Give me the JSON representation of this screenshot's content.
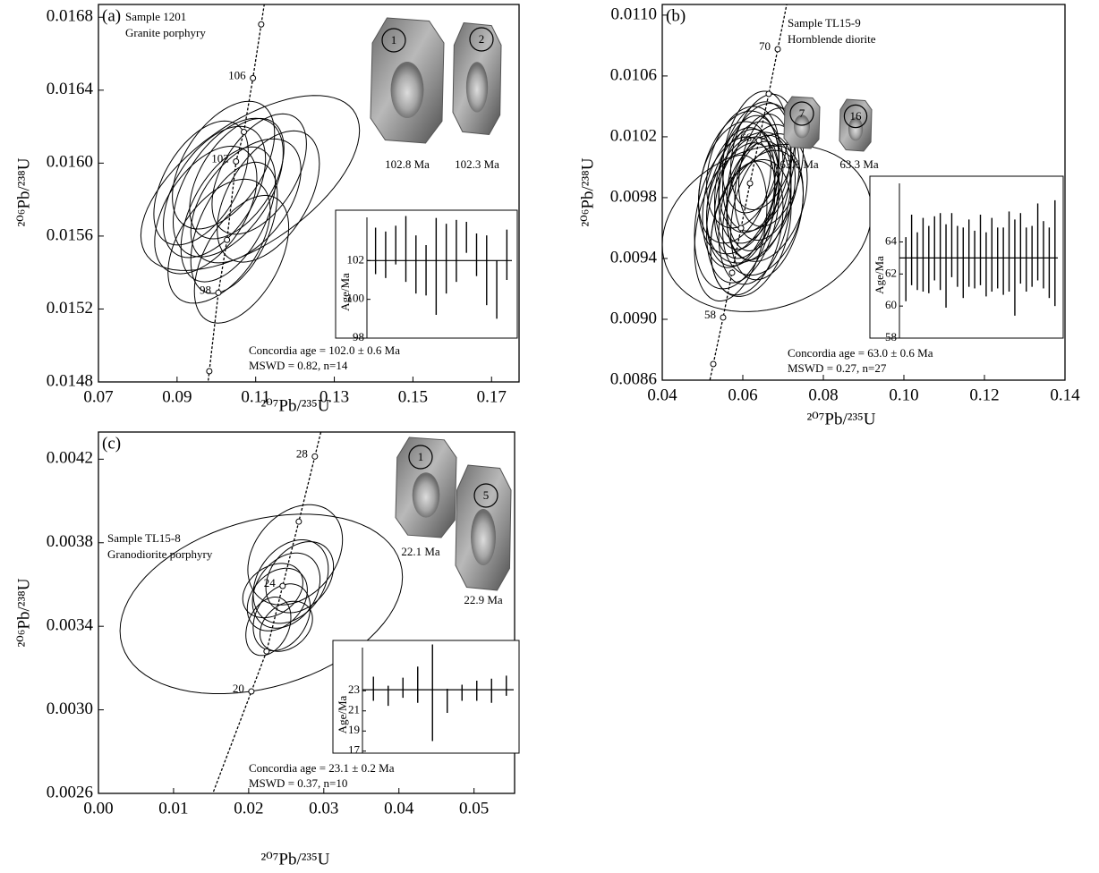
{
  "chart_data": [
    {
      "type": "concordia",
      "panel": "(a)",
      "sample": "Sample 1201",
      "rock": "Granite porphyry",
      "xlabel": "²⁰⁷Pb/²³⁵U",
      "ylabel": "²⁰⁶Pb/²³⁸U",
      "xlim": [
        0.07,
        0.177
      ],
      "ylim": [
        0.0148,
        0.01687
      ],
      "xticks": [
        0.07,
        0.09,
        0.11,
        0.13,
        0.15,
        0.17
      ],
      "yticks": [
        0.0148,
        0.0152,
        0.0156,
        {
          "value": 0.016,
          "label": "0.0160"
        },
        0.0164,
        0.0168
      ],
      "concordia": {
        "x": [
          0.0982,
          0.1005,
          0.1027,
          0.105,
          0.107,
          0.1093,
          0.1114
        ],
        "y": [
          0.014859,
          0.015289,
          0.015579,
          0.016009,
          0.016171,
          0.016466,
          0.016761
        ],
        "labels": [
          null,
          98,
          null,
          102,
          null,
          106,
          null
        ]
      },
      "ellipses": {
        "x": [
          0.1018,
          0.1052,
          0.0995,
          0.1075,
          0.103,
          0.0973,
          0.1109,
          0.1045,
          0.1007,
          0.1064,
          0.1132,
          0.0961,
          0.103,
          0.1086
        ],
        "y": [
          0.015989,
          0.015915,
          0.015842,
          0.015793,
          0.015719,
          0.015743,
          0.01594,
          0.015645,
          0.015572,
          0.015473,
          0.015817,
          0.015891,
          0.015866,
          0.015891
        ],
        "x_err": [
          0.013,
          0.012,
          0.013,
          0.014,
          0.012,
          0.013,
          0.012,
          0.011,
          0.013,
          0.012,
          0.013,
          0.012,
          0.014,
          0.0278
        ],
        "y_err": [
          0.00035,
          0.00033,
          0.00036,
          0.00034,
          0.00037,
          0.00035,
          0.00033,
          0.00036,
          0.00034,
          0.00035,
          0.00036,
          0.00034,
          0.00038,
          0.00048
        ],
        "rho": [
          0.5,
          0.5,
          0.5,
          0.5,
          0.5,
          0.5,
          0.5,
          0.5,
          0.5,
          0.5,
          0.5,
          0.5,
          0.5,
          0.6
        ]
      },
      "grains": [
        {
          "label": "1",
          "age": "102.8 Ma"
        },
        {
          "label": "2",
          "age": "102.3 Ma"
        }
      ],
      "concordia_age": "Concordia age = 102.0 ± 0.6 Ma",
      "mswd": "MSWD = 0.82, n=14",
      "inset": {
        "ylabel": "Age/Ma",
        "ylim": [
          98,
          104.6
        ],
        "yticks": [
          98,
          100,
          102
        ],
        "mean": 102.0,
        "values": [
          102.5,
          102.3,
          102.8,
          102.6,
          101.8,
          101.5,
          101.7,
          102.1,
          102.5,
          103.2,
          102.3,
          101.5,
          100.5,
          102.3
        ],
        "errors": [
          1.2,
          1.2,
          1.0,
          1.7,
          1.5,
          1.3,
          2.5,
          1.8,
          1.6,
          0.8,
          1.1,
          1.8,
          1.5,
          1.3
        ]
      }
    },
    {
      "type": "concordia",
      "panel": "(b)",
      "sample": "Sample TL15-9",
      "rock": "Hornblende diorite",
      "xlabel": "²⁰⁷Pb/²³⁵U",
      "ylabel": "²⁰⁶Pb/²³⁸U",
      "xlim": [
        0.04,
        0.14
      ],
      "ylim": [
        0.0086,
        0.01107
      ],
      "xticks": [
        0.04,
        0.06,
        0.08,
        {
          "value": 0.1,
          "label": "0.10"
        },
        0.12,
        0.14
      ],
      "yticks": [
        0.0086,
        {
          "value": 0.009,
          "label": "0.0090"
        },
        0.0094,
        0.0098,
        0.0102,
        0.0106,
        {
          "value": 0.011,
          "label": "0.0110"
        }
      ],
      "concordia": {
        "x": [
          0.05267,
          0.05511,
          0.05733,
          0.05956,
          0.06178,
          0.064,
          0.06644,
          0.06867
        ],
        "y": [
          0.008706,
          0.009012,
          0.009306,
          0.0096,
          0.009894,
          0.010176,
          0.010482,
          0.010776
        ],
        "labels": [
          null,
          58,
          null,
          null,
          null,
          66,
          null,
          70
        ]
      },
      "ellipses": {
        "x": [
          0.06,
          0.062,
          0.064,
          0.058,
          0.066,
          0.061,
          0.063,
          0.059,
          0.065,
          0.067,
          0.057,
          0.062,
          0.064,
          0.06,
          0.066,
          0.063,
          0.061,
          0.058,
          0.065,
          0.062,
          0.06,
          0.064,
          0.063,
          0.059,
          0.061,
          0.066,
          0.066
        ],
        "y": [
          0.0098,
          0.0099,
          0.01,
          0.0097,
          0.0099,
          0.0096,
          0.0101,
          0.0098,
          0.0097,
          0.01,
          0.0096,
          0.0098,
          0.0099,
          0.01,
          0.0098,
          0.0097,
          0.0099,
          0.0099,
          0.0101,
          0.0096,
          0.0097,
          0.0098,
          0.01,
          0.0099,
          0.0098,
          0.0097,
          0.0096
        ],
        "x_err": [
          0.009,
          0.008,
          0.009,
          0.01,
          0.008,
          0.009,
          0.008,
          0.009,
          0.01,
          0.008,
          0.009,
          0.011,
          0.008,
          0.009,
          0.01,
          0.009,
          0.008,
          0.009,
          0.008,
          0.01,
          0.009,
          0.008,
          0.009,
          0.01,
          0.008,
          0.009,
          0.026
        ],
        "y_err": [
          0.00045,
          0.0004,
          0.00042,
          0.0005,
          0.00038,
          0.00044,
          0.0004,
          0.00046,
          0.00041,
          0.00039,
          0.00048,
          0.00043,
          0.00045,
          0.0004,
          0.00042,
          0.00047,
          0.00044,
          0.0004,
          0.00038,
          0.00045,
          0.00046,
          0.00041,
          0.00043,
          0.00047,
          0.0004,
          0.00044,
          0.00055
        ],
        "rho": [
          0.3,
          0.3,
          0.3,
          0.3,
          0.3,
          0.3,
          0.3,
          0.3,
          0.3,
          0.3,
          0.3,
          0.3,
          0.3,
          0.3,
          0.3,
          0.3,
          0.3,
          0.3,
          0.3,
          0.3,
          0.3,
          0.3,
          0.3,
          0.3,
          0.3,
          0.3,
          0.2
        ]
      },
      "grains": [
        {
          "label": "7",
          "age": "63.6 Ma"
        },
        {
          "label": "16",
          "age": "63.3 Ma"
        }
      ],
      "concordia_age": "Concordia age = 63.0 ± 0.6 Ma",
      "mswd": "MSWD = 0.27, n=27",
      "inset": {
        "ylabel": "Age/Ma",
        "ylim": [
          58,
          68.1
        ],
        "yticks": [
          58,
          60,
          62,
          64
        ],
        "mean": 63.0,
        "values": [
          62.3,
          63.5,
          62.8,
          63.2,
          62.9,
          63.6,
          63.4,
          62.5,
          63.8,
          63.1,
          62.7,
          63.3,
          62.9,
          63.5,
          62.6,
          63.2,
          63.0,
          62.8,
          63.4,
          62.4,
          63.6,
          62.9,
          63.1,
          64.0,
          63.2,
          62.7,
          63.3
        ],
        "errors": [
          2.0,
          2.2,
          1.8,
          2.3,
          2.1,
          2.0,
          2.4,
          2.6,
          2.0,
          1.9,
          2.2,
          2.1,
          1.8,
          2.2,
          2.0,
          2.3,
          1.9,
          2.1,
          2.5,
          3.0,
          2.2,
          2.0,
          1.9,
          2.4,
          2.1,
          2.2,
          3.3
        ]
      }
    },
    {
      "type": "concordia",
      "panel": "(c)",
      "sample": "Sample TL15-8",
      "rock": "Granodiorite porphyry",
      "xlabel": "²⁰⁷Pb/²³⁵U",
      "ylabel": "²⁰⁶Pb/²³⁸U",
      "xlim": [
        0,
        0.0554
      ],
      "ylim": [
        0.0026,
        0.00433
      ],
      "xticks": [
        {
          "value": 0,
          "label": "0.00"
        },
        0.01,
        0.02,
        0.03,
        0.04,
        0.05
      ],
      "yticks": [
        0.0026,
        {
          "value": 0.003,
          "label": "0.0030"
        },
        0.0034,
        0.0038,
        0.0042
      ],
      "concordia": {
        "x": [
          0.02036,
          0.02238,
          0.02452,
          0.02667,
          0.02881
        ],
        "y": [
          0.003088,
          0.00328,
          0.003593,
          0.003901,
          0.004213
        ],
        "labels": [
          20,
          null,
          24,
          null,
          28
        ]
      },
      "ellipses": {
        "x": [
          0.02619,
          0.025,
          0.02381,
          0.0256,
          0.0244,
          0.02262,
          0.02679,
          0.02321,
          0.025,
          0.02167
        ],
        "y": [
          0.003742,
          0.003571,
          0.003528,
          0.003614,
          0.003443,
          0.0034,
          0.003635,
          0.003571,
          0.0034,
          0.003507
        ],
        "x_err": [
          0.0063,
          0.0045,
          0.004,
          0.005,
          0.0038,
          0.003,
          0.0045,
          0.004,
          0.0035,
          0.0188
        ],
        "y_err": [
          0.00024,
          0.00018,
          0.00015,
          0.0002,
          0.00016,
          0.00014,
          0.00017,
          0.00013,
          0.00012,
          0.00043
        ],
        "rho": [
          0.3,
          0.3,
          0.3,
          0.3,
          0.3,
          0.3,
          0.3,
          0.3,
          0.3,
          0.3
        ]
      },
      "grains": [
        {
          "label": "1",
          "age": "22.1 Ma"
        },
        {
          "label": "5",
          "age": "22.9 Ma"
        }
      ],
      "concordia_age": "Concordia age = 23.1 ± 0.2 Ma",
      "mswd": "MSWD = 0.37, n=10",
      "inset": {
        "ylabel": "Age/Ma",
        "ylim": [
          16.8,
          28
        ],
        "yticks": [
          17,
          19,
          21,
          23
        ],
        "mean": 23.1,
        "values": [
          23.2,
          22.5,
          23.3,
          23.6,
          22.8,
          22.0,
          22.8,
          23.0,
          23.0,
          23.5
        ],
        "errors": [
          1.2,
          1.0,
          1.0,
          1.8,
          4.8,
          1.2,
          0.8,
          1.0,
          1.2,
          1.0
        ]
      }
    }
  ]
}
